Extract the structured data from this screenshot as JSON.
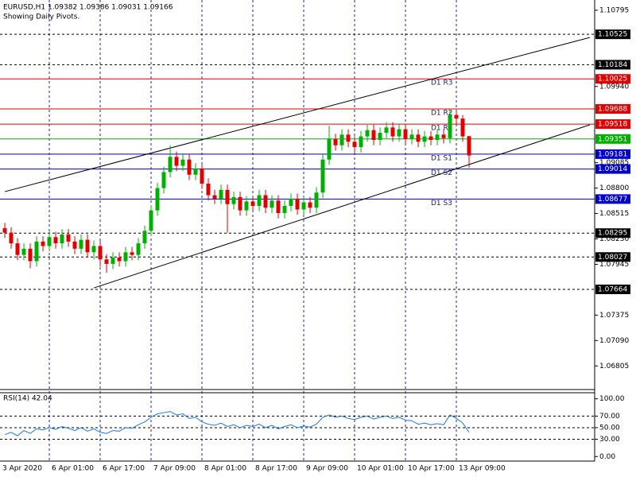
{
  "chart_data": {
    "type": "candlestick",
    "title": "EURUSD,H1  1.09382 1.09386 1.09031 1.09166",
    "subtitle": "Showing Daily Pivots.",
    "categories": [
      "3 Apr 2020",
      "6 Apr 01:00",
      "6 Apr 17:00",
      "7 Apr 09:00",
      "8 Apr 01:00",
      "8 Apr 17:00",
      "9 Apr 09:00",
      "10 Apr 01:00",
      "10 Apr 17:00",
      "13 Apr 09:00"
    ],
    "up_color": "#00b000",
    "down_color": "#e00000",
    "candles": [
      [
        1.0835,
        1.0841,
        1.0824,
        1.083
      ],
      [
        1.083,
        1.0836,
        1.0812,
        1.0818
      ],
      [
        1.0818,
        1.0824,
        1.0799,
        1.0805
      ],
      [
        1.0805,
        1.0818,
        1.0799,
        1.0812
      ],
      [
        1.0812,
        1.0818,
        1.079,
        1.0798
      ],
      [
        1.0798,
        1.0826,
        1.0792,
        1.082
      ],
      [
        1.082,
        1.0826,
        1.0809,
        1.0815
      ],
      [
        1.0815,
        1.0831,
        1.0809,
        1.0825
      ],
      [
        1.0825,
        1.0831,
        1.0812,
        1.0818
      ],
      [
        1.0818,
        1.0834,
        1.0812,
        1.0828
      ],
      [
        1.0828,
        1.0834,
        1.0814,
        1.082
      ],
      [
        1.082,
        1.0826,
        1.0806,
        1.0812
      ],
      [
        1.0812,
        1.0828,
        1.0806,
        1.0822
      ],
      [
        1.0822,
        1.0828,
        1.0802,
        1.0808
      ],
      [
        1.0808,
        1.0821,
        1.08,
        1.0815
      ],
      [
        1.0815,
        1.0821,
        1.0792,
        1.08
      ],
      [
        1.08,
        1.0806,
        1.0785,
        1.0795
      ],
      [
        1.0795,
        1.0808,
        1.0789,
        1.0802
      ],
      [
        1.0802,
        1.0808,
        1.0792,
        1.0798
      ],
      [
        1.0798,
        1.0814,
        1.0792,
        1.0808
      ],
      [
        1.0808,
        1.0814,
        1.0799,
        1.0805
      ],
      [
        1.0805,
        1.0824,
        1.0799,
        1.0818
      ],
      [
        1.0818,
        1.0838,
        1.0812,
        1.0832
      ],
      [
        1.0832,
        1.0861,
        1.0826,
        1.0855
      ],
      [
        1.0855,
        1.0886,
        1.0849,
        1.088
      ],
      [
        1.088,
        1.0904,
        1.0874,
        1.0898
      ],
      [
        1.0898,
        1.0928,
        1.0892,
        1.0915
      ],
      [
        1.0915,
        1.0921,
        1.0899,
        1.0905
      ],
      [
        1.0905,
        1.0918,
        1.0899,
        1.0912
      ],
      [
        1.0912,
        1.0918,
        1.0889,
        1.0895
      ],
      [
        1.0895,
        1.0908,
        1.0889,
        1.0902
      ],
      [
        1.0902,
        1.0908,
        1.0879,
        1.0885
      ],
      [
        1.0885,
        1.0891,
        1.0866,
        1.0872
      ],
      [
        1.0872,
        1.0878,
        1.0862,
        1.0868
      ],
      [
        1.0868,
        1.0884,
        1.0862,
        1.0878
      ],
      [
        1.0878,
        1.0884,
        1.083,
        1.0862
      ],
      [
        1.0862,
        1.0876,
        1.0856,
        1.087
      ],
      [
        1.087,
        1.0876,
        1.0849,
        1.0855
      ],
      [
        1.0855,
        1.0871,
        1.0849,
        1.0865
      ],
      [
        1.0865,
        1.0871,
        1.0854,
        1.086
      ],
      [
        1.086,
        1.0878,
        1.0854,
        1.0872
      ],
      [
        1.0872,
        1.0878,
        1.0852,
        1.0858
      ],
      [
        1.0858,
        1.0872,
        1.0852,
        1.0866
      ],
      [
        1.0866,
        1.0872,
        1.0846,
        1.0852
      ],
      [
        1.0852,
        1.0866,
        1.0846,
        1.086
      ],
      [
        1.086,
        1.0874,
        1.0854,
        1.0868
      ],
      [
        1.0868,
        1.0874,
        1.085,
        1.0856
      ],
      [
        1.0856,
        1.087,
        1.085,
        1.0864
      ],
      [
        1.0864,
        1.087,
        1.0852,
        1.0858
      ],
      [
        1.0858,
        1.0881,
        1.0852,
        1.0875
      ],
      [
        1.0875,
        1.0918,
        1.0869,
        1.0912
      ],
      [
        1.0912,
        1.095,
        1.0906,
        1.0935
      ],
      [
        1.0935,
        1.0941,
        1.0922,
        1.0928
      ],
      [
        1.0928,
        1.0946,
        1.0922,
        1.094
      ],
      [
        1.094,
        1.0946,
        1.0926,
        1.0932
      ],
      [
        1.0932,
        1.0938,
        1.092,
        1.0926
      ],
      [
        1.0926,
        1.0944,
        1.092,
        1.0938
      ],
      [
        1.0938,
        1.0951,
        1.0932,
        1.0945
      ],
      [
        1.0945,
        1.0951,
        1.0928,
        1.0934
      ],
      [
        1.0934,
        1.0948,
        1.0928,
        1.0942
      ],
      [
        1.0942,
        1.0954,
        1.0936,
        1.0948
      ],
      [
        1.0948,
        1.0954,
        1.0932,
        1.0938
      ],
      [
        1.0938,
        1.0952,
        1.0932,
        1.0946
      ],
      [
        1.0946,
        1.0952,
        1.0929,
        1.0935
      ],
      [
        1.0935,
        1.0946,
        1.0929,
        1.094
      ],
      [
        1.094,
        1.0946,
        1.0926,
        1.0932
      ],
      [
        1.0932,
        1.0944,
        1.0926,
        1.0938
      ],
      [
        1.0938,
        1.0944,
        1.0928,
        1.0934
      ],
      [
        1.0934,
        1.0946,
        1.0928,
        1.094
      ],
      [
        1.094,
        1.0946,
        1.093,
        1.0936
      ],
      [
        1.0936,
        1.0968,
        1.093,
        1.0962
      ],
      [
        1.0962,
        1.0968,
        1.095,
        1.0958
      ],
      [
        1.0958,
        1.0962,
        1.0932,
        1.0938
      ],
      [
        1.09382,
        1.09386,
        1.09031,
        1.09166
      ]
    ],
    "ylim": [
      1.0654,
      1.1091
    ],
    "yticks": [
      1.10795,
      {
        "value": 1.0994,
        "label": "1.09940"
      },
      1.09085,
      {
        "value": 1.088,
        "label": "1.08800"
      },
      1.08515,
      {
        "value": 1.0823,
        "label": "1.08230"
      },
      1.07945,
      1.07375,
      {
        "value": 1.0709,
        "label": "1.07090"
      },
      1.06805
    ],
    "levels": [
      {
        "value": 1.10525,
        "color": "#000000"
      },
      {
        "value": 1.10184,
        "color": "#000000"
      },
      {
        "value": 1.08295,
        "color": "#000000"
      },
      {
        "value": 1.08027,
        "color": "#000000"
      },
      {
        "value": 1.07664,
        "color": "#000000"
      }
    ],
    "pivots": [
      {
        "name": "D1 R3",
        "value": 1.10025,
        "color": "#e00000"
      },
      {
        "name": "D1 R2",
        "value": 1.09688,
        "color": "#e00000"
      },
      {
        "name": "D1 R1",
        "value": 1.09518,
        "color": "#e00000"
      },
      {
        "value": 1.09351,
        "color": "#00b000"
      },
      {
        "name": "D1 S1",
        "value": 1.09181,
        "color": "#0000c8"
      },
      {
        "name": "D1 S2",
        "value": 1.09014,
        "color": "#0000c8"
      },
      {
        "name": "D1 S3",
        "value": 1.08677,
        "color": "#0000c8"
      }
    ],
    "trendlines": [
      {
        "from": [
          0,
          1.0876
        ],
        "to": [
          92,
          1.1049
        ],
        "color": "#000000"
      },
      {
        "from": [
          14,
          1.0768
        ],
        "to": [
          92,
          1.0951
        ],
        "color": "#000000"
      }
    ],
    "rsi": {
      "title": "RSI(14) 42.04",
      "color": "#1e78e6",
      "values": [
        38,
        42,
        36,
        45,
        40,
        48,
        46,
        50,
        47,
        52,
        49,
        45,
        50,
        44,
        48,
        42,
        40,
        45,
        44,
        50,
        49,
        55,
        60,
        68,
        74,
        76,
        78,
        72,
        74,
        66,
        68,
        60,
        56,
        54,
        58,
        52,
        55,
        50,
        54,
        52,
        56,
        50,
        54,
        48,
        52,
        55,
        50,
        53,
        51,
        56,
        68,
        72,
        68,
        70,
        66,
        64,
        68,
        70,
        65,
        68,
        70,
        66,
        68,
        63,
        62,
        56,
        58,
        55,
        57,
        55,
        72,
        66,
        58,
        42.04
      ],
      "ylim": [
        -7.9,
        110.5
      ],
      "yticks": [
        {
          "value": 100,
          "label": "100.00"
        },
        {
          "value": 70,
          "label": "70.00"
        },
        {
          "value": 50,
          "label": "50.00"
        },
        {
          "value": 30,
          "label": "30.00"
        },
        {
          "value": 0,
          "label": "0.00"
        }
      ],
      "levels": [
        70,
        50,
        30
      ]
    }
  }
}
